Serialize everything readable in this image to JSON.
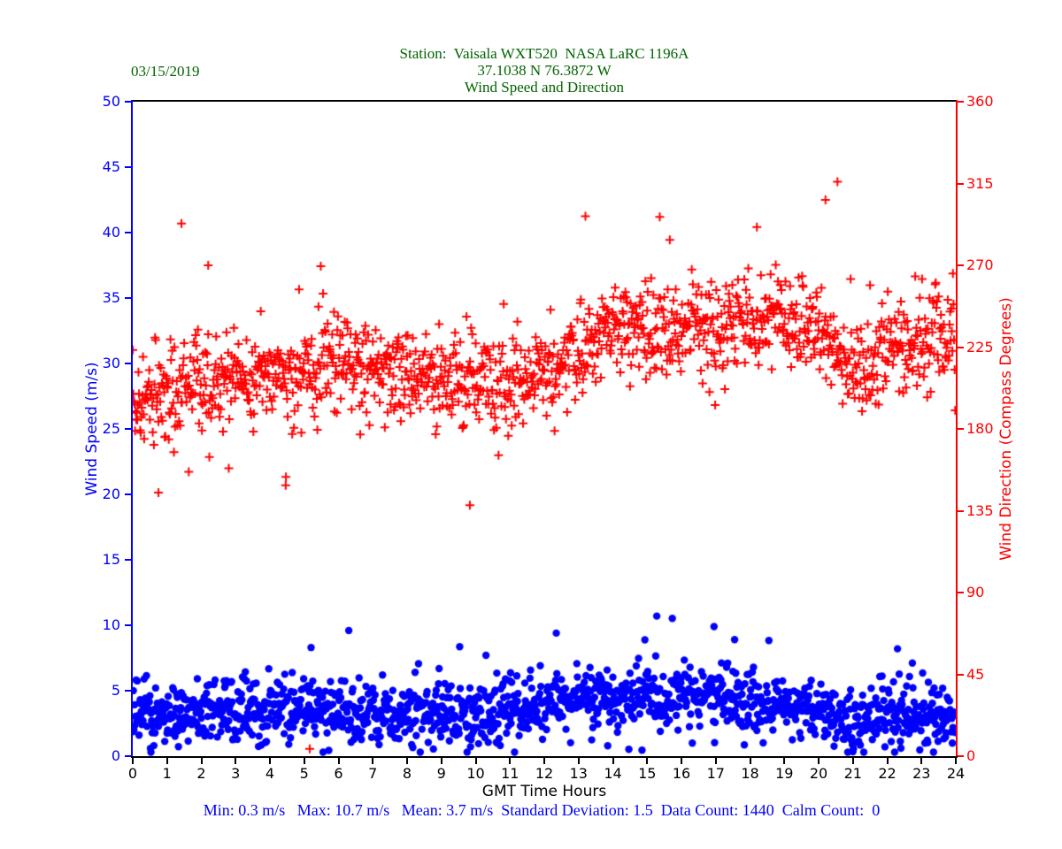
{
  "header": {
    "date": "03/15/2019",
    "title_line1": "Station:  Vaisala WXT520  NASA LaRC 1196A",
    "title_line2": "37.1038 N 76.3872 W",
    "title_line3": "Wind Speed and Direction",
    "title_color": "#006400"
  },
  "footer": {
    "stats_line": "Min: 0.3 m/s   Max: 10.7 m/s   Mean: 3.7 m/s  Standard Deviation: 1.5  Data Count: 1440  Calm Count:  0",
    "color": "#0000ff"
  },
  "chart_data": {
    "type": "scatter",
    "title": "Wind Speed and Direction",
    "xlabel": "GMT Time Hours",
    "xlim": [
      0,
      24
    ],
    "x_ticks": [
      0,
      1,
      2,
      3,
      4,
      5,
      6,
      7,
      8,
      9,
      10,
      11,
      12,
      13,
      14,
      15,
      16,
      17,
      18,
      19,
      20,
      21,
      22,
      23,
      24
    ],
    "x_axis_color": "#000000",
    "grid": false,
    "seed": 20190315,
    "left_axis": {
      "label": "Wind Speed (m/s)",
      "color": "#0000ff",
      "lim": [
        0,
        50
      ],
      "ticks": [
        0,
        5,
        10,
        15,
        20,
        25,
        30,
        35,
        40,
        45,
        50
      ]
    },
    "right_axis": {
      "label": "Wind Direction (Compass Degrees)",
      "color": "#ff0000",
      "lim": [
        0,
        360
      ],
      "ticks": [
        0,
        45,
        90,
        135,
        180,
        225,
        270,
        315,
        360
      ]
    },
    "series": [
      {
        "name": "Wind Speed",
        "axis": "left",
        "marker": "circle",
        "marker_radius": 4.2,
        "color": "#0000ff",
        "count": 1440,
        "stats": {
          "min": 0.3,
          "max": 10.7,
          "mean": 3.7,
          "std": 1.5,
          "data_count": 1440,
          "calm_count": 0
        },
        "hourly_mean": [
          3.4,
          3.2,
          3.5,
          3.4,
          3.3,
          3.5,
          3.6,
          3.4,
          3.1,
          3.0,
          3.2,
          3.6,
          3.9,
          4.0,
          4.3,
          4.5,
          4.3,
          4.4,
          4.2,
          4.0,
          3.6,
          2.6,
          3.2,
          3.3,
          3.0
        ],
        "jitter_std": 1.2,
        "clamp": [
          0.3,
          10.7
        ],
        "outliers": [
          [
            0.53,
            0.3
          ],
          [
            5.2,
            8.3
          ],
          [
            6.3,
            9.6
          ],
          [
            10.3,
            7.7
          ],
          [
            12.35,
            9.4
          ],
          [
            15.28,
            10.7
          ],
          [
            16.95,
            9.9
          ],
          [
            17.55,
            8.9
          ],
          [
            22.3,
            8.2
          ]
        ]
      },
      {
        "name": "Wind Direction",
        "axis": "right",
        "marker": "plus",
        "marker_half": 5,
        "marker_line_width": 2,
        "color": "#ff0000",
        "count": 1440,
        "hourly_mean": [
          194,
          200,
          206,
          208,
          210,
          212,
          214,
          213,
          210,
          206,
          204,
          207,
          212,
          222,
          236,
          233,
          235,
          238,
          240,
          238,
          236,
          214,
          228,
          232,
          229
        ],
        "jitter_std": 12.5,
        "clamp": [
          0,
          360
        ],
        "outliers": [
          [
            0.75,
            145
          ],
          [
            1.42,
            293
          ],
          [
            2.2,
            270
          ],
          [
            4.46,
            149
          ],
          [
            5.16,
            4
          ],
          [
            9.83,
            138
          ],
          [
            13.2,
            297
          ],
          [
            15.66,
            284
          ],
          [
            18.2,
            291
          ],
          [
            20.2,
            306
          ],
          [
            20.55,
            316
          ]
        ]
      }
    ]
  }
}
